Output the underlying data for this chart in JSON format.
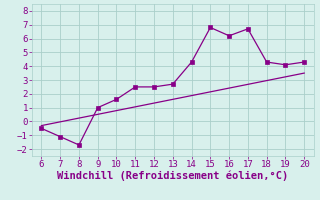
{
  "x_data": [
    6,
    7,
    8,
    9,
    10,
    11,
    12,
    13,
    14,
    15,
    16,
    17,
    18,
    19,
    20
  ],
  "y_scatter": [
    -0.5,
    -1.1,
    -1.7,
    1.0,
    1.6,
    2.5,
    2.5,
    2.7,
    4.3,
    6.8,
    6.2,
    6.7,
    4.3,
    4.1,
    4.3
  ],
  "trend_x": [
    6,
    20
  ],
  "trend_y": [
    -0.3,
    3.5
  ],
  "xlim": [
    5.5,
    20.5
  ],
  "ylim": [
    -2.5,
    8.5
  ],
  "xticks": [
    6,
    7,
    8,
    9,
    10,
    11,
    12,
    13,
    14,
    15,
    16,
    17,
    18,
    19,
    20
  ],
  "yticks": [
    -2,
    -1,
    0,
    1,
    2,
    3,
    4,
    5,
    6,
    7,
    8
  ],
  "xlabel": "Windchill (Refroidissement éolien,°C)",
  "line_color": "#880088",
  "bg_color": "#d8f0ec",
  "grid_color": "#aacfca",
  "tick_color": "#880088",
  "label_color": "#880088",
  "tick_fontsize": 6.5,
  "xlabel_fontsize": 7.5
}
